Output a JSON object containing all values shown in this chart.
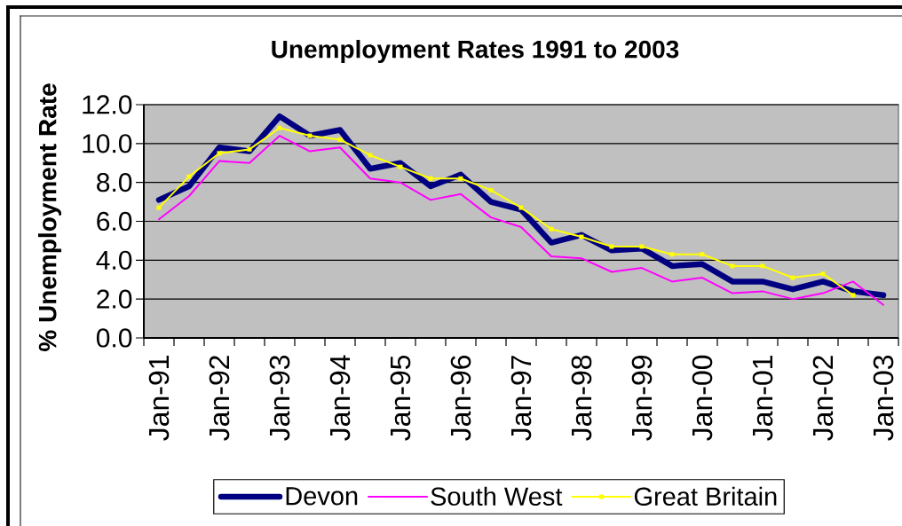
{
  "chart_data": {
    "type": "line",
    "title": "Unemployment Rates 1991 to 2003",
    "ylabel": "% Unemployment Rate",
    "categories": [
      "Jan-91",
      null,
      "Jan-92",
      null,
      "Jan-93",
      null,
      "Jan-94",
      null,
      "Jan-95",
      null,
      "Jan-96",
      null,
      "Jan-97",
      null,
      "Jan-98",
      null,
      "Jan-99",
      null,
      "Jan-00",
      null,
      "Jan-01",
      null,
      "Jan-02",
      null,
      "Jan-03"
    ],
    "series": [
      {
        "name": "Devon",
        "color": "#000080",
        "values": [
          7.1,
          7.8,
          9.8,
          9.6,
          11.4,
          10.4,
          10.7,
          8.7,
          9.0,
          7.8,
          8.4,
          7.0,
          6.6,
          4.9,
          5.3,
          4.5,
          4.6,
          3.7,
          3.8,
          2.9,
          2.9,
          2.5,
          2.9,
          2.4,
          2.2
        ]
      },
      {
        "name": "South West",
        "color": "#ff00ff",
        "values": [
          6.1,
          7.3,
          9.1,
          9.0,
          10.4,
          9.6,
          9.8,
          8.2,
          8.0,
          7.1,
          7.4,
          6.2,
          5.7,
          4.2,
          4.1,
          3.4,
          3.6,
          2.9,
          3.1,
          2.3,
          2.4,
          2.0,
          2.3,
          2.9,
          1.7
        ]
      },
      {
        "name": "Great Britain",
        "color": "#ffff00",
        "marker": "square",
        "values": [
          6.7,
          8.3,
          9.5,
          9.7,
          10.8,
          10.4,
          10.2,
          9.4,
          8.8,
          8.2,
          8.2,
          7.6,
          6.7,
          5.6,
          5.2,
          4.7,
          4.7,
          4.3,
          4.3,
          3.7,
          3.7,
          3.1,
          3.3,
          2.2,
          null
        ]
      }
    ],
    "ylim": [
      0,
      12
    ],
    "yticks": [
      {
        "value": 0,
        "label": "0.0"
      },
      {
        "value": 2,
        "label": "2.0"
      },
      {
        "value": 4,
        "label": "4.0"
      },
      {
        "value": 6,
        "label": "6.0"
      },
      {
        "value": 8,
        "label": "8.0"
      },
      {
        "value": 10,
        "label": "10.0"
      },
      {
        "value": 12,
        "label": "12.0"
      }
    ],
    "grid": "y",
    "legend": "bottom"
  }
}
